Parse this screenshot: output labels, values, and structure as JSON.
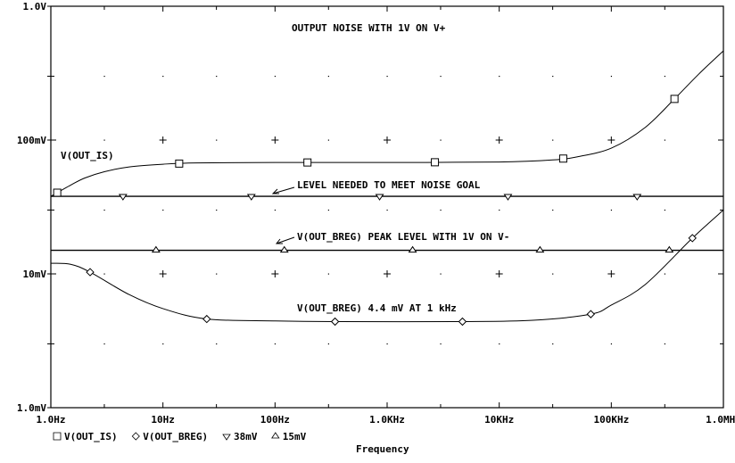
{
  "chart_data": {
    "type": "line",
    "title": "OUTPUT NOISE WITH 1V ON V+",
    "xlabel": "Frequency",
    "ylabel": "",
    "x_scale": "log",
    "y_scale": "log",
    "xlim": [
      1,
      1000000
    ],
    "ylim_volts": [
      0.001,
      1
    ],
    "x_ticks": [
      {
        "value": 1,
        "label": "1.0Hz"
      },
      {
        "value": 10,
        "label": "10Hz"
      },
      {
        "value": 100,
        "label": "100Hz"
      },
      {
        "value": 1000,
        "label": "1.0KHz"
      },
      {
        "value": 10000,
        "label": "10KHz"
      },
      {
        "value": 100000,
        "label": "100KHz"
      },
      {
        "value": 1000000,
        "label": "1.0MHz"
      }
    ],
    "y_ticks": [
      {
        "value": 1,
        "label": "1.0V"
      },
      {
        "value": 0.1,
        "label": "100mV"
      },
      {
        "value": 0.01,
        "label": "10mV"
      },
      {
        "value": 0.001,
        "label": "1.0mV"
      }
    ],
    "grid": "dots",
    "legend_position": "bottom-left",
    "series": [
      {
        "name": "V(OUT_IS)",
        "marker": "square",
        "unit": "mV",
        "points": [
          [
            1,
            38
          ],
          [
            1.5,
            46
          ],
          [
            2,
            52
          ],
          [
            3,
            58
          ],
          [
            5,
            63
          ],
          [
            10,
            66
          ],
          [
            20,
            67.5
          ],
          [
            100,
            68
          ],
          [
            1000,
            68
          ],
          [
            10000,
            68.5
          ],
          [
            30000,
            71
          ],
          [
            50000,
            75
          ],
          [
            100000,
            87
          ],
          [
            200000,
            124
          ],
          [
            366000,
            203
          ],
          [
            600000,
            310
          ],
          [
            1000000,
            464
          ]
        ],
        "marker_x": [
          1.14,
          13.96,
          194.7,
          2668,
          37240,
          366000
        ]
      },
      {
        "name": "V(OUT_BREG)",
        "marker": "diamond",
        "unit": "mV",
        "points": [
          [
            1,
            12
          ],
          [
            1.5,
            11.8
          ],
          [
            2.24,
            10.3
          ],
          [
            5,
            7
          ],
          [
            10,
            5.5
          ],
          [
            24.6,
            4.6
          ],
          [
            100,
            4.45
          ],
          [
            343,
            4.4
          ],
          [
            4700,
            4.4
          ],
          [
            20000,
            4.5
          ],
          [
            65600,
            5.0
          ],
          [
            100000,
            5.85
          ],
          [
            200000,
            8.3
          ],
          [
            529000,
            18.5
          ],
          [
            1000000,
            30
          ]
        ],
        "marker_x": [
          2.24,
          24.6,
          343,
          4700,
          65600,
          529000
        ]
      },
      {
        "name": "38mV",
        "marker": "triangle-down",
        "unit": "mV",
        "points": [
          [
            1,
            38
          ],
          [
            1000000,
            38
          ]
        ],
        "marker_x": [
          4.4,
          61.5,
          857,
          11970,
          170000
        ]
      },
      {
        "name": "15mV",
        "marker": "triangle-up",
        "unit": "mV",
        "points": [
          [
            1,
            15
          ],
          [
            1000000,
            15
          ]
        ],
        "marker_x": [
          8.67,
          121,
          1688,
          23100,
          329000
        ]
      }
    ],
    "annotations": [
      {
        "text": "V(OUT_IS)",
        "near_series": "V(OUT_IS)"
      },
      {
        "text": "LEVEL NEEDED TO MEET NOISE GOAL",
        "arrow": true
      },
      {
        "text": "V(OUT_BREG) PEAK LEVEL WITH 1V ON V-",
        "arrow": true
      },
      {
        "text": "V(OUT_BREG) 4.4 mV AT 1 kHz"
      }
    ]
  }
}
